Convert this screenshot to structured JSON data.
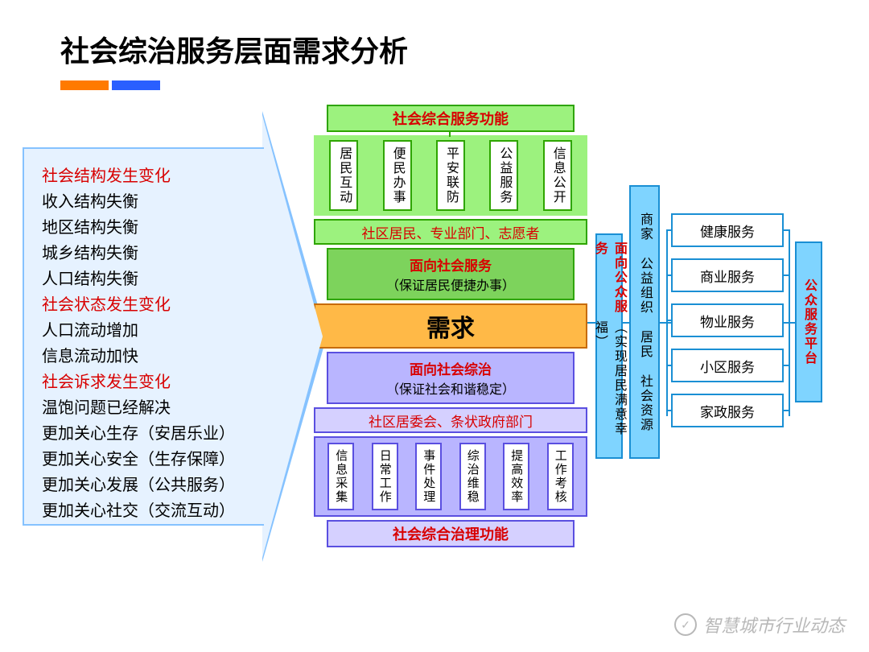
{
  "title": "社会综治服务层面需求分析",
  "accent": {
    "bar1_color": "#ff7a00",
    "bar2_color": "#2a5fff"
  },
  "left": {
    "items": [
      {
        "text": "社会结构发生变化",
        "cls": "red"
      },
      {
        "text": "收入结构失衡",
        "cls": "blk"
      },
      {
        "text": "地区结构失衡",
        "cls": "blk"
      },
      {
        "text": "城乡结构失衡",
        "cls": "blk"
      },
      {
        "text": "人口结构失衡",
        "cls": "blk"
      },
      {
        "text": "社会状态发生变化",
        "cls": "red"
      },
      {
        "text": "人口流动增加",
        "cls": "blk"
      },
      {
        "text": "信息流动加快",
        "cls": "blk"
      },
      {
        "text": "社会诉求发生变化",
        "cls": "red"
      },
      {
        "text": "温饱问题已经解决",
        "cls": "blk"
      },
      {
        "text": "更加关心生存（安居乐业）",
        "cls": "blk"
      },
      {
        "text": "更加关心安全（生存保障）",
        "cls": "blk"
      },
      {
        "text": "更加关心发展（公共服务）",
        "cls": "blk"
      },
      {
        "text": "更加关心社交（交流互动）",
        "cls": "blk"
      }
    ],
    "fill": "#e6f2ff",
    "border": "#85c2ff"
  },
  "center": {
    "top_header": "社会综合服务功能",
    "top_items": [
      "居民互动",
      "便民办事",
      "平安联防",
      "公益服务",
      "信息公开"
    ],
    "top_participants": "社区居民、专业部门、志愿者",
    "service": {
      "title": "面向社会服务",
      "sub": "（保证居民便捷办事）"
    },
    "demand": "需求",
    "governance": {
      "title": "面向社会综治",
      "sub": "（保证社会和谐稳定）"
    },
    "bottom_participants": "社区居委会、条状政府部门",
    "bottom_items": [
      "信息采集",
      "日常工作",
      "事件处理",
      "综治维稳",
      "提高效率",
      "工作考核"
    ],
    "bottom_header": "社会综合治理功能",
    "colors": {
      "green_fill": "#9cf27e",
      "green_border": "#2ea500",
      "orange_fill": "#ffb947",
      "orange_border": "#c76b00",
      "purple_fill": "#b9b5ff",
      "purple_border": "#5a4fe0",
      "purple_light": "#d5d0ff"
    }
  },
  "right": {
    "col1": {
      "title": "面向公众服务",
      "sub": "（实现居民满意幸福）"
    },
    "col2": "商家  公益组织  居民  社会资源",
    "services": [
      "健康服务",
      "商业服务",
      "物业服务",
      "小区服务",
      "家政服务"
    ],
    "col3": "公众服务平台",
    "colors": {
      "cyan_fill": "#7fd4ff",
      "cyan_border": "#1a8fd4"
    }
  },
  "watermark": "智慧城市行业动态"
}
